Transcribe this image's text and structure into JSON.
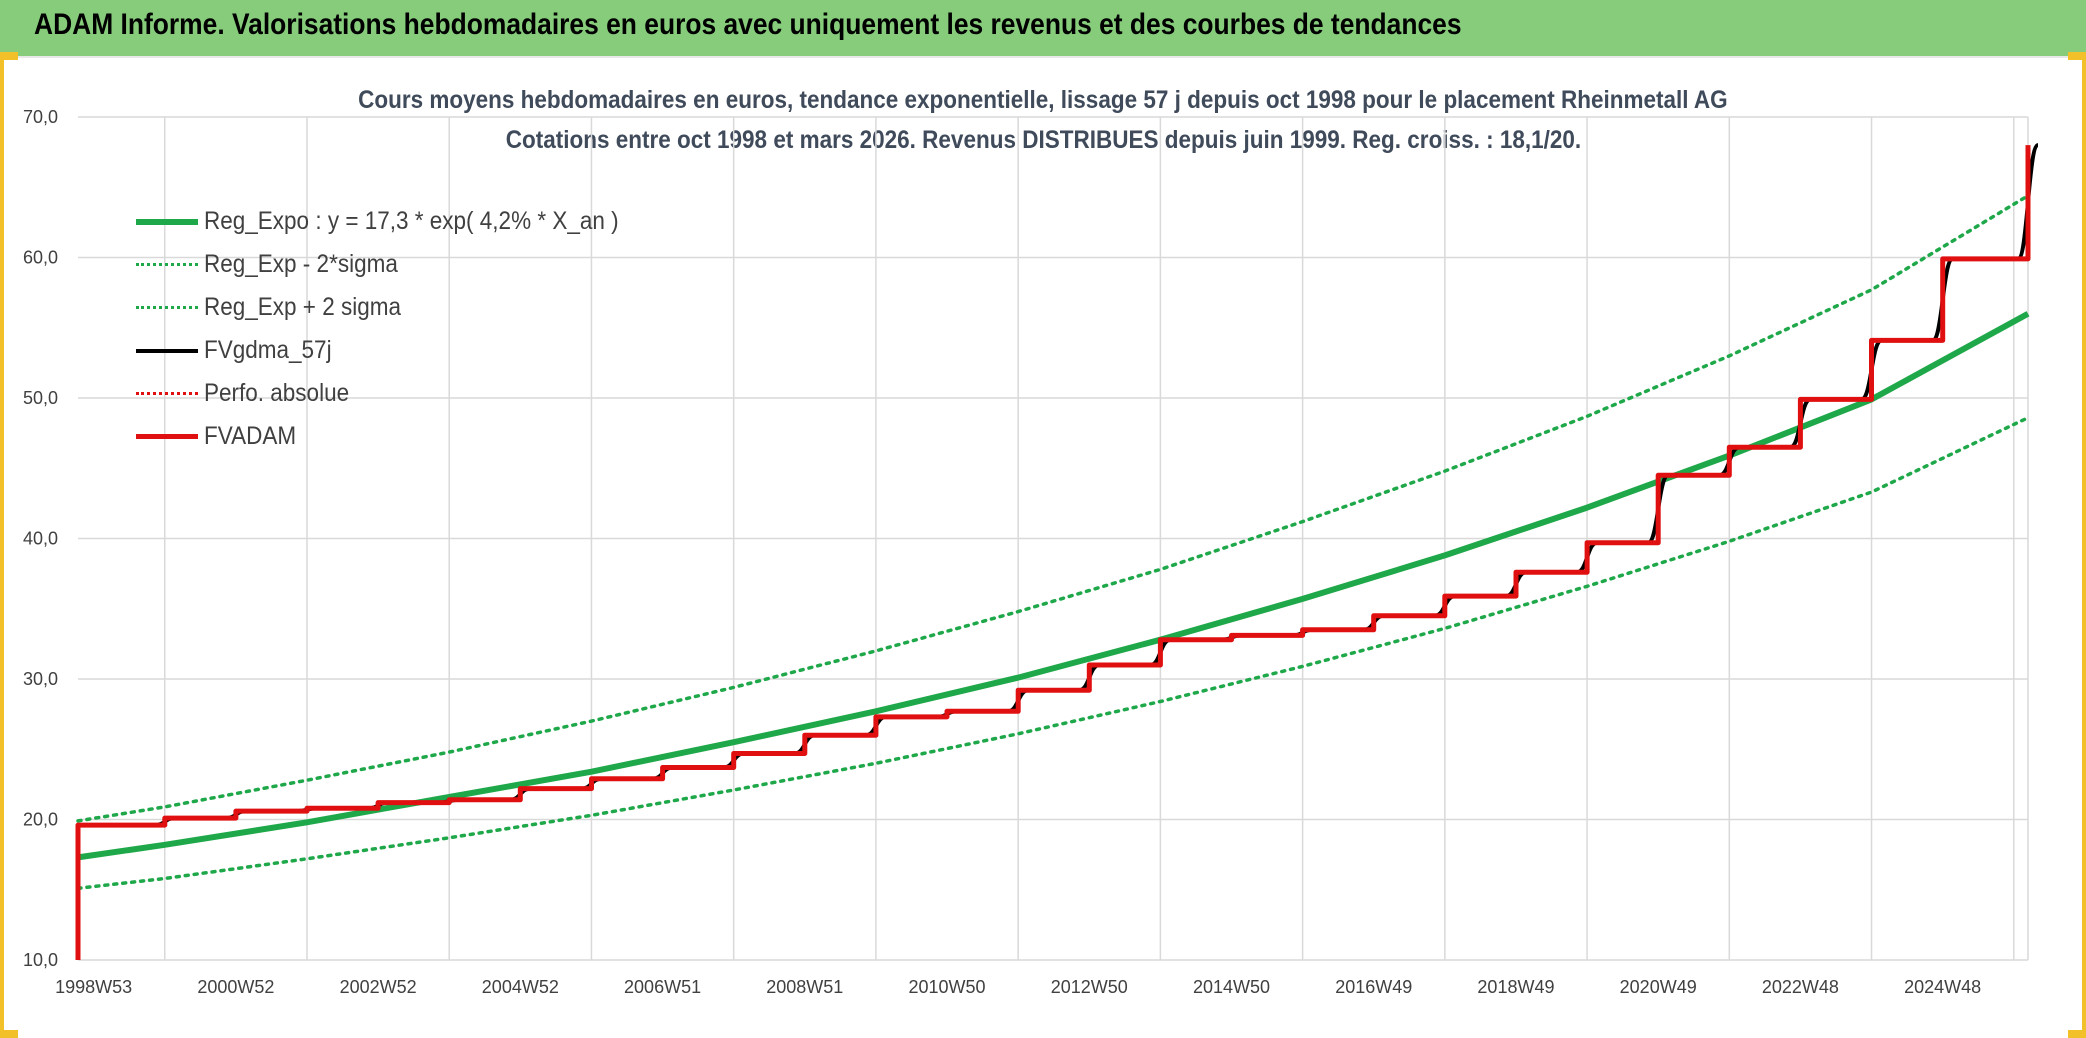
{
  "banner": {
    "title": "ADAM Informe. Valorisations hebdomadaires en euros avec uniquement les revenus et des courbes de tendances"
  },
  "colors": {
    "banner_bg": "#86cc7b",
    "border": "#f2c029",
    "reg_expo": "#1fa84a",
    "sigma": "#1fa84a",
    "fvgdma": "#000000",
    "perfo": "#e01010",
    "fvadam": "#e01010",
    "grid": "#d9d9d9"
  },
  "chart_data": {
    "type": "line",
    "title": "Cours moyens hebdomadaires en euros, tendance exponentielle, lissage 57 j depuis oct 1998 pour le placement Rheinmetall AG",
    "subtitle": "Cotations entre oct 1998 et mars 2026. Revenus DISTRIBUES depuis juin 1999. Reg. croiss. : 18,1/20.",
    "xlabel": "",
    "ylabel": "",
    "ylim": [
      10,
      70
    ],
    "yticks": [
      "10,0",
      "20,0",
      "30,0",
      "40,0",
      "50,0",
      "60,0",
      "70,0"
    ],
    "xlim": [
      1998.78,
      2026.2
    ],
    "xticks": [
      {
        "label": "1998W53",
        "x": 1999.0
      },
      {
        "label": "2000W52",
        "x": 2001.0
      },
      {
        "label": "2002W52",
        "x": 2003.0
      },
      {
        "label": "2004W52",
        "x": 2005.0
      },
      {
        "label": "2006W51",
        "x": 2007.0
      },
      {
        "label": "2008W51",
        "x": 2009.0
      },
      {
        "label": "2010W50",
        "x": 2011.0
      },
      {
        "label": "2012W50",
        "x": 2013.0
      },
      {
        "label": "2014W50",
        "x": 2015.0
      },
      {
        "label": "2016W49",
        "x": 2017.0
      },
      {
        "label": "2018W49",
        "x": 2019.0
      },
      {
        "label": "2020W49",
        "x": 2021.0
      },
      {
        "label": "2022W48",
        "x": 2023.0
      },
      {
        "label": "2024W48",
        "x": 2025.0
      }
    ],
    "grid": true,
    "legend_position": "top-left",
    "series": [
      {
        "name": "Reg_Expo : y = 17,3 * exp( 4,2% *  X_an )",
        "style": "solid-thick",
        "color": "#1fa84a",
        "x": [
          1998.78,
          2000,
          2002,
          2004,
          2006,
          2008,
          2010,
          2012,
          2014,
          2016,
          2018,
          2020,
          2022,
          2024,
          2026.2
        ],
        "values": [
          17.3,
          18.2,
          19.8,
          21.6,
          23.4,
          25.5,
          27.7,
          30.1,
          32.8,
          35.7,
          38.8,
          42.2,
          45.9,
          49.9,
          56.0
        ]
      },
      {
        "name": "Reg_Exp - 2*sigma",
        "style": "dotted",
        "color": "#1fa84a",
        "x": [
          1998.78,
          2000,
          2002,
          2004,
          2006,
          2008,
          2010,
          2012,
          2014,
          2016,
          2018,
          2020,
          2022,
          2024,
          2026.2
        ],
        "values": [
          15.1,
          15.8,
          17.2,
          18.7,
          20.3,
          22.1,
          24.0,
          26.1,
          28.4,
          30.9,
          33.6,
          36.6,
          39.8,
          43.3,
          48.6
        ]
      },
      {
        "name": "Reg_Exp + 2 sigma",
        "style": "dotted",
        "color": "#1fa84a",
        "x": [
          1998.78,
          2000,
          2002,
          2004,
          2006,
          2008,
          2010,
          2012,
          2014,
          2016,
          2018,
          2020,
          2022,
          2024,
          2026.2
        ],
        "values": [
          19.9,
          20.9,
          22.8,
          24.8,
          27.0,
          29.4,
          32.0,
          34.8,
          37.8,
          41.2,
          44.8,
          48.7,
          53.0,
          57.7,
          64.4
        ]
      },
      {
        "name": "FVgdma_57j",
        "style": "solid",
        "color": "#000000",
        "x": [
          1998.78,
          1998.78,
          1999.2,
          2000,
          2001,
          2002,
          2003,
          2004,
          2005,
          2006,
          2007,
          2008,
          2009,
          2010,
          2011,
          2012,
          2013,
          2014,
          2015,
          2016,
          2017,
          2018,
          2019,
          2020,
          2021,
          2022,
          2023,
          2024,
          2025,
          2026.2
        ],
        "values": [
          10.0,
          19.6,
          19.6,
          20.1,
          20.6,
          20.8,
          21.2,
          21.4,
          22.2,
          22.9,
          23.7,
          24.7,
          26.0,
          27.3,
          27.7,
          29.2,
          31.0,
          32.8,
          33.1,
          33.5,
          34.5,
          35.9,
          37.6,
          39.7,
          44.5,
          46.5,
          49.9,
          54.1,
          59.9,
          68.0
        ]
      },
      {
        "name": "Perfo. absolue",
        "style": "dotted",
        "color": "#e01010",
        "x": [],
        "values": []
      },
      {
        "name": "FVADAM",
        "style": "step",
        "color": "#e01010",
        "x": [
          1998.78,
          1998.78,
          1999.2,
          2000,
          2001,
          2002,
          2003,
          2004,
          2005,
          2006,
          2007,
          2008,
          2009,
          2010,
          2011,
          2012,
          2013,
          2014,
          2015,
          2016,
          2017,
          2018,
          2019,
          2020,
          2021,
          2022,
          2023,
          2024,
          2025,
          2026.2
        ],
        "values": [
          10.0,
          19.6,
          19.6,
          20.1,
          20.6,
          20.8,
          21.2,
          21.4,
          22.2,
          22.9,
          23.7,
          24.7,
          26.0,
          27.3,
          27.7,
          29.2,
          31.0,
          32.8,
          33.1,
          33.5,
          34.5,
          35.9,
          37.6,
          39.7,
          44.5,
          46.5,
          49.9,
          54.1,
          59.9,
          68.0
        ]
      }
    ]
  }
}
